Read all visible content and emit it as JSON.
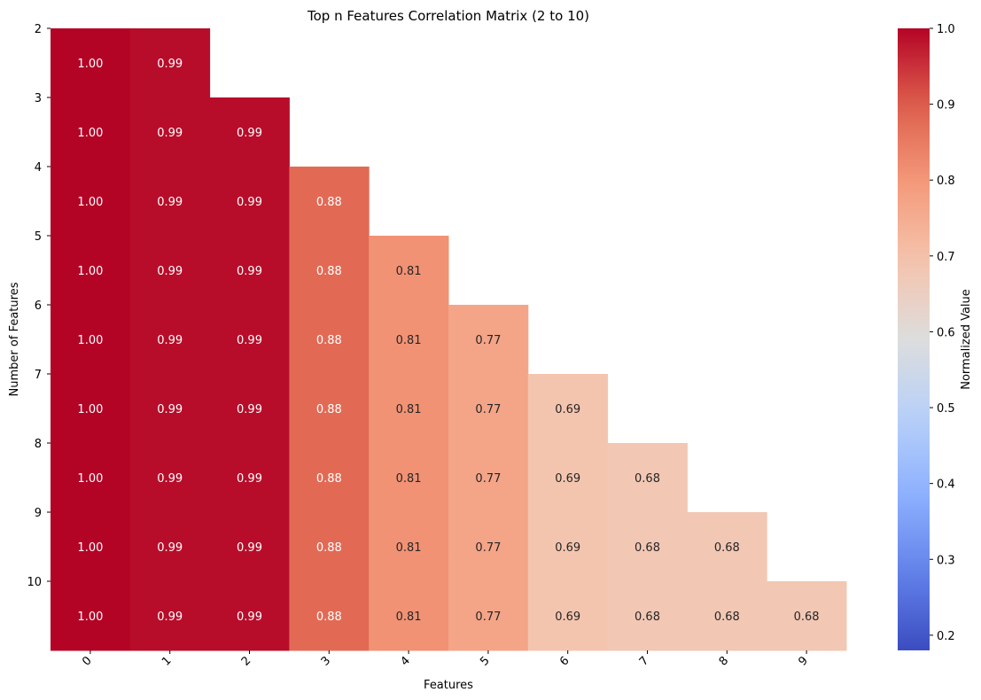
{
  "chart_data": {
    "type": "heatmap",
    "title": "Top n Features Correlation Matrix (2 to 10)",
    "xlabel": "Features",
    "ylabel": "Number of Features",
    "colorbar_label": "Normalized Value",
    "colormap": "coolwarm",
    "x_categories": [
      "0",
      "1",
      "2",
      "3",
      "4",
      "5",
      "6",
      "7",
      "8",
      "9"
    ],
    "y_categories": [
      "2",
      "3",
      "4",
      "5",
      "6",
      "7",
      "8",
      "9",
      "10"
    ],
    "values": [
      [
        1.0,
        0.99,
        null,
        null,
        null,
        null,
        null,
        null,
        null,
        null
      ],
      [
        1.0,
        0.99,
        0.99,
        null,
        null,
        null,
        null,
        null,
        null,
        null
      ],
      [
        1.0,
        0.99,
        0.99,
        0.88,
        null,
        null,
        null,
        null,
        null,
        null
      ],
      [
        1.0,
        0.99,
        0.99,
        0.88,
        0.81,
        null,
        null,
        null,
        null,
        null
      ],
      [
        1.0,
        0.99,
        0.99,
        0.88,
        0.81,
        0.77,
        null,
        null,
        null,
        null
      ],
      [
        1.0,
        0.99,
        0.99,
        0.88,
        0.81,
        0.77,
        0.69,
        null,
        null,
        null
      ],
      [
        1.0,
        0.99,
        0.99,
        0.88,
        0.81,
        0.77,
        0.69,
        0.68,
        null,
        null
      ],
      [
        1.0,
        0.99,
        0.99,
        0.88,
        0.81,
        0.77,
        0.69,
        0.68,
        0.68,
        null
      ],
      [
        1.0,
        0.99,
        0.99,
        0.88,
        0.81,
        0.77,
        0.69,
        0.68,
        0.68,
        0.68
      ]
    ],
    "value_format": "0.00",
    "color_range": [
      0.18,
      1.0
    ],
    "colorbar_ticks": [
      "0.2",
      "0.3",
      "0.4",
      "0.5",
      "0.6",
      "0.7",
      "0.8",
      "0.9",
      "1.0"
    ],
    "grid": false
  }
}
